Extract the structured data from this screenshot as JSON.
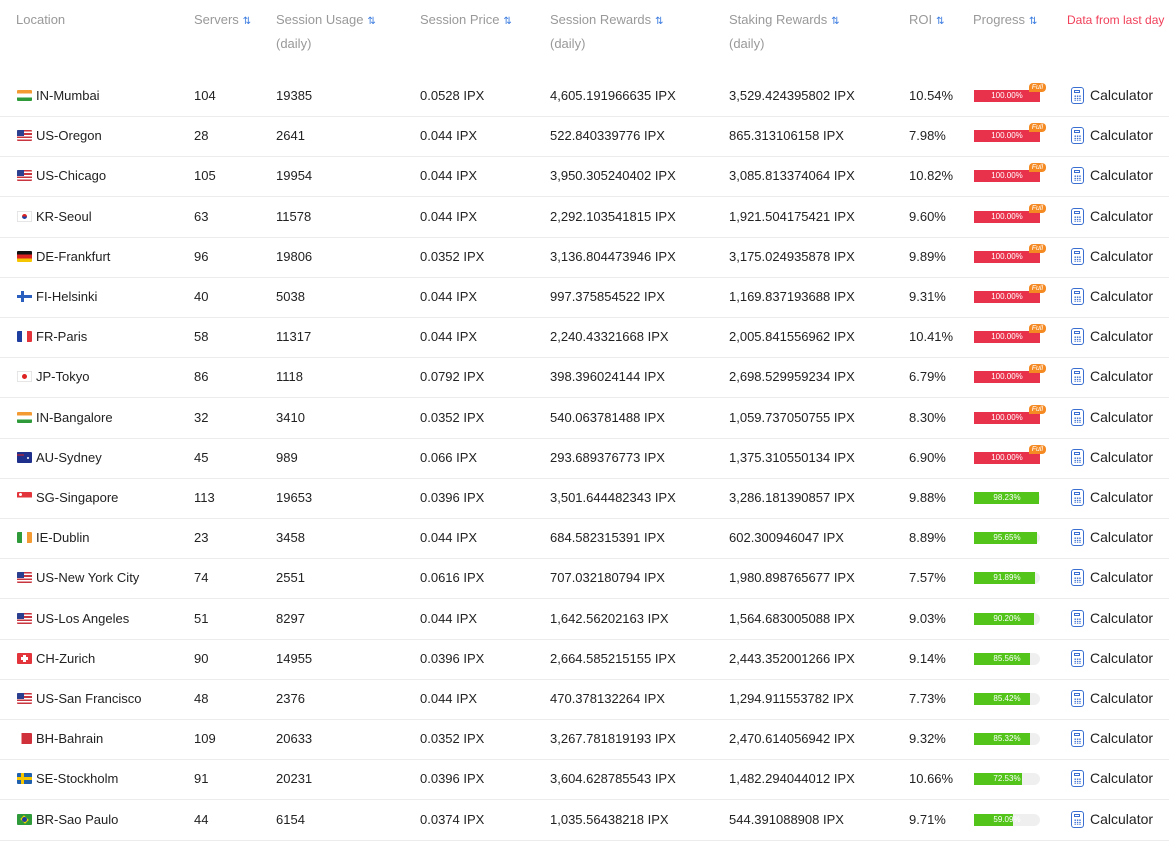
{
  "header": {
    "location": "Location",
    "servers": "Servers",
    "session_usage": "Session Usage",
    "session_usage_sub": "(daily)",
    "session_price": "Session Price",
    "session_rewards": "Session Rewards",
    "session_rewards_sub": "(daily)",
    "staking_rewards": "Staking Rewards",
    "staking_rewards_sub": "(daily)",
    "roi": "ROI",
    "progress": "Progress",
    "note": "Data from last day",
    "sort_icon": "⇅"
  },
  "full_badge": "Full",
  "calculator_label": "Calculator",
  "colors": {
    "full_bar": "#e8324c",
    "partial_bar": "#52c41a",
    "accent": "#3a7be0",
    "note": "#f0405a"
  },
  "rows": [
    {
      "location": "IN-Mumbai",
      "flag": "in",
      "servers": "104",
      "usage": "19385",
      "price": "0.0528 IPX",
      "session_rewards": "4,605.191966635 IPX",
      "staking_rewards": "3,529.424395802 IPX",
      "roi": "10.54%",
      "progress": "100.00%",
      "progress_value": 100,
      "full": true
    },
    {
      "location": "US-Oregon",
      "flag": "us",
      "servers": "28",
      "usage": "2641",
      "price": "0.044 IPX",
      "session_rewards": "522.840339776 IPX",
      "staking_rewards": "865.313106158 IPX",
      "roi": "7.98%",
      "progress": "100.00%",
      "progress_value": 100,
      "full": true
    },
    {
      "location": "US-Chicago",
      "flag": "us",
      "servers": "105",
      "usage": "19954",
      "price": "0.044 IPX",
      "session_rewards": "3,950.305240402 IPX",
      "staking_rewards": "3,085.813374064 IPX",
      "roi": "10.82%",
      "progress": "100.00%",
      "progress_value": 100,
      "full": true
    },
    {
      "location": "KR-Seoul",
      "flag": "kr",
      "servers": "63",
      "usage": "11578",
      "price": "0.044 IPX",
      "session_rewards": "2,292.103541815 IPX",
      "staking_rewards": "1,921.504175421 IPX",
      "roi": "9.60%",
      "progress": "100.00%",
      "progress_value": 100,
      "full": true
    },
    {
      "location": "DE-Frankfurt",
      "flag": "de",
      "servers": "96",
      "usage": "19806",
      "price": "0.0352 IPX",
      "session_rewards": "3,136.804473946 IPX",
      "staking_rewards": "3,175.024935878 IPX",
      "roi": "9.89%",
      "progress": "100.00%",
      "progress_value": 100,
      "full": true
    },
    {
      "location": "FI-Helsinki",
      "flag": "fi",
      "servers": "40",
      "usage": "5038",
      "price": "0.044 IPX",
      "session_rewards": "997.375854522 IPX",
      "staking_rewards": "1,169.837193688 IPX",
      "roi": "9.31%",
      "progress": "100.00%",
      "progress_value": 100,
      "full": true
    },
    {
      "location": "FR-Paris",
      "flag": "fr",
      "servers": "58",
      "usage": "11317",
      "price": "0.044 IPX",
      "session_rewards": "2,240.43321668 IPX",
      "staking_rewards": "2,005.841556962 IPX",
      "roi": "10.41%",
      "progress": "100.00%",
      "progress_value": 100,
      "full": true
    },
    {
      "location": "JP-Tokyo",
      "flag": "jp",
      "servers": "86",
      "usage": "1118",
      "price": "0.0792 IPX",
      "session_rewards": "398.396024144 IPX",
      "staking_rewards": "2,698.529959234 IPX",
      "roi": "6.79%",
      "progress": "100.00%",
      "progress_value": 100,
      "full": true
    },
    {
      "location": "IN-Bangalore",
      "flag": "in",
      "servers": "32",
      "usage": "3410",
      "price": "0.0352 IPX",
      "session_rewards": "540.063781488 IPX",
      "staking_rewards": "1,059.737050755 IPX",
      "roi": "8.30%",
      "progress": "100.00%",
      "progress_value": 100,
      "full": true
    },
    {
      "location": "AU-Sydney",
      "flag": "au",
      "servers": "45",
      "usage": "989",
      "price": "0.066 IPX",
      "session_rewards": "293.689376773 IPX",
      "staking_rewards": "1,375.310550134 IPX",
      "roi": "6.90%",
      "progress": "100.00%",
      "progress_value": 100,
      "full": true
    },
    {
      "location": "SG-Singapore",
      "flag": "sg",
      "servers": "113",
      "usage": "19653",
      "price": "0.0396 IPX",
      "session_rewards": "3,501.644482343 IPX",
      "staking_rewards": "3,286.181390857 IPX",
      "roi": "9.88%",
      "progress": "98.23%",
      "progress_value": 98.23,
      "full": false
    },
    {
      "location": "IE-Dublin",
      "flag": "ie",
      "servers": "23",
      "usage": "3458",
      "price": "0.044 IPX",
      "session_rewards": "684.582315391 IPX",
      "staking_rewards": "602.300946047 IPX",
      "roi": "8.89%",
      "progress": "95.65%",
      "progress_value": 95.65,
      "full": false
    },
    {
      "location": "US-New York City",
      "flag": "us",
      "servers": "74",
      "usage": "2551",
      "price": "0.0616 IPX",
      "session_rewards": "707.032180794 IPX",
      "staking_rewards": "1,980.898765677 IPX",
      "roi": "7.57%",
      "progress": "91.89%",
      "progress_value": 91.89,
      "full": false
    },
    {
      "location": "US-Los Angeles",
      "flag": "us",
      "servers": "51",
      "usage": "8297",
      "price": "0.044 IPX",
      "session_rewards": "1,642.56202163 IPX",
      "staking_rewards": "1,564.683005088 IPX",
      "roi": "9.03%",
      "progress": "90.20%",
      "progress_value": 90.2,
      "full": false
    },
    {
      "location": "CH-Zurich",
      "flag": "ch",
      "servers": "90",
      "usage": "14955",
      "price": "0.0396 IPX",
      "session_rewards": "2,664.585215155 IPX",
      "staking_rewards": "2,443.352001266 IPX",
      "roi": "9.14%",
      "progress": "85.56%",
      "progress_value": 85.56,
      "full": false
    },
    {
      "location": "US-San Francisco",
      "flag": "us",
      "servers": "48",
      "usage": "2376",
      "price": "0.044 IPX",
      "session_rewards": "470.378132264 IPX",
      "staking_rewards": "1,294.911553782 IPX",
      "roi": "7.73%",
      "progress": "85.42%",
      "progress_value": 85.42,
      "full": false
    },
    {
      "location": "BH-Bahrain",
      "flag": "bh",
      "servers": "109",
      "usage": "20633",
      "price": "0.0352 IPX",
      "session_rewards": "3,267.781819193 IPX",
      "staking_rewards": "2,470.614056942 IPX",
      "roi": "9.32%",
      "progress": "85.32%",
      "progress_value": 85.32,
      "full": false
    },
    {
      "location": "SE-Stockholm",
      "flag": "se",
      "servers": "91",
      "usage": "20231",
      "price": "0.0396 IPX",
      "session_rewards": "3,604.628785543 IPX",
      "staking_rewards": "1,482.294044012 IPX",
      "roi": "10.66%",
      "progress": "72.53%",
      "progress_value": 72.53,
      "full": false
    },
    {
      "location": "BR-Sao Paulo",
      "flag": "br",
      "servers": "44",
      "usage": "6154",
      "price": "0.0374 IPX",
      "session_rewards": "1,035.56438218 IPX",
      "staking_rewards": "544.391088908 IPX",
      "roi": "9.71%",
      "progress": "59.09%",
      "progress_value": 59.09,
      "full": false
    }
  ]
}
